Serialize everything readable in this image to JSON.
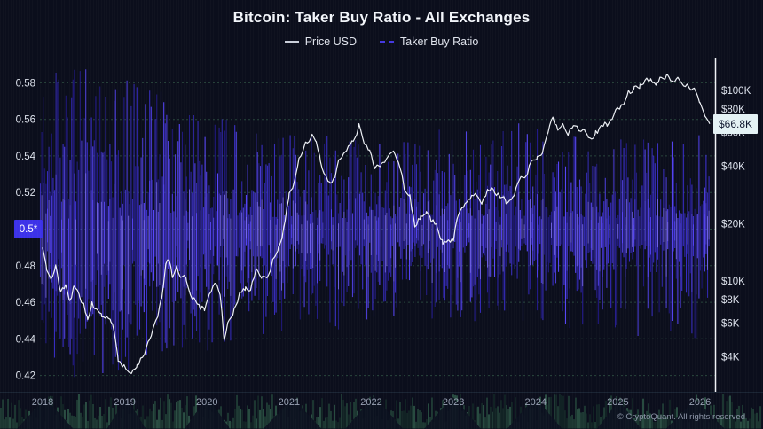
{
  "meta": {
    "title": "Bitcoin: Taker Buy Ratio - All Exchanges",
    "copyright": "© CryptoQuant. All rights reserved"
  },
  "colors": {
    "background": "#0b0e1c",
    "grid": "#2c4f41",
    "price_line": "#eef1f6",
    "axis_text": "#dde2ec",
    "x_axis_text": "#98a1b3",
    "right_axis_line": "#f0f2f6",
    "ratio_badge_bg": "#3c32e8",
    "price_badge_bg": "#e4f2f5",
    "stroke_dark": "#241b8e",
    "stroke_mid": "#3a2ecc",
    "stroke_bright": "#5a48ff",
    "stroke_highlight": "#7b6cf2",
    "nav_dark": "#16302a",
    "nav_mid": "#27503f",
    "nav_bright": "#3c7258",
    "nav_mountain": "#0c1120"
  },
  "legend": {
    "items": [
      {
        "label": "Price USD",
        "swatch": "solid",
        "color": "#c9ced9"
      },
      {
        "label": "Taker Buy Ratio",
        "swatch": "dashed",
        "color": "#4438e0"
      }
    ]
  },
  "chart_data": {
    "type": "line",
    "title": "Bitcoin: Taker Buy Ratio - All Exchanges",
    "grid": "dashed horizontal",
    "x_axis": {
      "ticks": [
        2018,
        2019,
        2020,
        2021,
        2022,
        2023,
        2024,
        2025,
        2026
      ],
      "range": [
        2017.97,
        2026.2
      ]
    },
    "left_axis": {
      "name": "Taker Buy Ratio",
      "ticks": [
        0.58,
        0.56,
        0.54,
        0.52,
        0.48,
        0.46,
        0.44,
        0.42
      ],
      "range": [
        0.405,
        0.593
      ],
      "current": {
        "label": "0.5*",
        "value": 0.5
      }
    },
    "right_axis": {
      "name": "Price USD",
      "scale": "log",
      "ticks": [
        {
          "label": "$100K",
          "value": 100000
        },
        {
          "label": "$80K",
          "value": 80000
        },
        {
          "label": "$60K",
          "value": 60000
        },
        {
          "label": "$40K",
          "value": 40000
        },
        {
          "label": "$20K",
          "value": 20000
        },
        {
          "label": "$10K",
          "value": 10000
        },
        {
          "label": "$8K",
          "value": 8000
        },
        {
          "label": "$6K",
          "value": 6000
        },
        {
          "label": "$4K",
          "value": 4000
        }
      ],
      "current": {
        "label": "$66.8K",
        "value": 66800
      }
    },
    "series": [
      {
        "name": "Price USD",
        "axis": "right",
        "type": "line",
        "color": "#eef1f6",
        "points": [
          [
            2018.0,
            15000
          ],
          [
            2018.05,
            11500
          ],
          [
            2018.1,
            10000
          ],
          [
            2018.16,
            11800
          ],
          [
            2018.22,
            8600
          ],
          [
            2018.28,
            9200
          ],
          [
            2018.33,
            7600
          ],
          [
            2018.38,
            9300
          ],
          [
            2018.45,
            8400
          ],
          [
            2018.5,
            7300
          ],
          [
            2018.55,
            6400
          ],
          [
            2018.6,
            7500
          ],
          [
            2018.65,
            7000
          ],
          [
            2018.72,
            6400
          ],
          [
            2018.78,
            6700
          ],
          [
            2018.83,
            6400
          ],
          [
            2018.87,
            5600
          ],
          [
            2018.92,
            4000
          ],
          [
            2018.97,
            3600
          ],
          [
            2019.03,
            3500
          ],
          [
            2019.08,
            3400
          ],
          [
            2019.15,
            3700
          ],
          [
            2019.22,
            4000
          ],
          [
            2019.3,
            5100
          ],
          [
            2019.38,
            5900
          ],
          [
            2019.45,
            8200
          ],
          [
            2019.5,
            11800
          ],
          [
            2019.54,
            12900
          ],
          [
            2019.58,
            10500
          ],
          [
            2019.63,
            11800
          ],
          [
            2019.68,
            10000
          ],
          [
            2019.75,
            10300
          ],
          [
            2019.8,
            8500
          ],
          [
            2019.86,
            8100
          ],
          [
            2019.92,
            7300
          ],
          [
            2019.97,
            7200
          ],
          [
            2020.03,
            8400
          ],
          [
            2020.1,
            9800
          ],
          [
            2020.16,
            8900
          ],
          [
            2020.21,
            4900
          ],
          [
            2020.27,
            6400
          ],
          [
            2020.33,
            7100
          ],
          [
            2020.4,
            8800
          ],
          [
            2020.47,
            9200
          ],
          [
            2020.53,
            9100
          ],
          [
            2020.6,
            11200
          ],
          [
            2020.67,
            10300
          ],
          [
            2020.73,
            10700
          ],
          [
            2020.8,
            13000
          ],
          [
            2020.87,
            15500
          ],
          [
            2020.93,
            18500
          ],
          [
            2021.0,
            28000
          ],
          [
            2021.06,
            33000
          ],
          [
            2021.12,
            45000
          ],
          [
            2021.2,
            52000
          ],
          [
            2021.28,
            60000
          ],
          [
            2021.33,
            52000
          ],
          [
            2021.38,
            42000
          ],
          [
            2021.43,
            36000
          ],
          [
            2021.5,
            33000
          ],
          [
            2021.56,
            34500
          ],
          [
            2021.62,
            44000
          ],
          [
            2021.7,
            48000
          ],
          [
            2021.78,
            55000
          ],
          [
            2021.85,
            64000
          ],
          [
            2021.92,
            51000
          ],
          [
            2021.98,
            47000
          ],
          [
            2022.05,
            39000
          ],
          [
            2022.12,
            40500
          ],
          [
            2022.2,
            42500
          ],
          [
            2022.27,
            46000
          ],
          [
            2022.33,
            40000
          ],
          [
            2022.4,
            31000
          ],
          [
            2022.47,
            28500
          ],
          [
            2022.53,
            19500
          ],
          [
            2022.6,
            21500
          ],
          [
            2022.67,
            23500
          ],
          [
            2022.73,
            20500
          ],
          [
            2022.8,
            19800
          ],
          [
            2022.87,
            16200
          ],
          [
            2022.94,
            16600
          ],
          [
            2023.0,
            16800
          ],
          [
            2023.06,
            22500
          ],
          [
            2023.12,
            24500
          ],
          [
            2023.2,
            27800
          ],
          [
            2023.28,
            29200
          ],
          [
            2023.35,
            26800
          ],
          [
            2023.42,
            30200
          ],
          [
            2023.5,
            29800
          ],
          [
            2023.57,
            28500
          ],
          [
            2023.64,
            25800
          ],
          [
            2023.72,
            27000
          ],
          [
            2023.8,
            34200
          ],
          [
            2023.88,
            36800
          ],
          [
            2023.95,
            42800
          ],
          [
            2024.02,
            43500
          ],
          [
            2024.08,
            48000
          ],
          [
            2024.15,
            61000
          ],
          [
            2024.21,
            71000
          ],
          [
            2024.27,
            63000
          ],
          [
            2024.33,
            67500
          ],
          [
            2024.4,
            60500
          ],
          [
            2024.46,
            67000
          ],
          [
            2024.53,
            60000
          ],
          [
            2024.6,
            64500
          ],
          [
            2024.66,
            57000
          ],
          [
            2024.73,
            60000
          ],
          [
            2024.8,
            63500
          ],
          [
            2024.87,
            68000
          ],
          [
            2024.93,
            72000
          ],
          [
            2025.0,
            80000
          ],
          [
            2025.07,
            86000
          ],
          [
            2025.13,
            96000
          ],
          [
            2025.2,
            100000
          ],
          [
            2025.27,
            106000
          ],
          [
            2025.33,
            110000
          ],
          [
            2025.4,
            115000
          ],
          [
            2025.47,
            112000
          ],
          [
            2025.53,
            118000
          ],
          [
            2025.6,
            120000
          ],
          [
            2025.67,
            114000
          ],
          [
            2025.73,
            117000
          ],
          [
            2025.8,
            110000
          ],
          [
            2025.87,
            103000
          ],
          [
            2025.93,
            98000
          ],
          [
            2026.0,
            86000
          ],
          [
            2026.06,
            74000
          ],
          [
            2026.12,
            66800
          ]
        ]
      },
      {
        "name": "Taker Buy Ratio",
        "axis": "left",
        "type": "dense-oscillation",
        "color": "#4a3af0",
        "mean": 0.5,
        "last_value": 0.5,
        "seed": 1337,
        "envelope": [
          [
            2018.0,
            0.088,
            0.078,
            1.0
          ],
          [
            2019.0,
            0.088,
            0.08,
            1.0
          ],
          [
            2019.8,
            0.065,
            0.065,
            1.3
          ],
          [
            2020.8,
            0.055,
            0.058,
            1.5
          ],
          [
            2022.0,
            0.048,
            0.052,
            1.8
          ],
          [
            2023.0,
            0.055,
            0.05,
            1.7
          ],
          [
            2024.0,
            0.055,
            0.052,
            1.8
          ],
          [
            2025.0,
            0.05,
            0.058,
            1.8
          ],
          [
            2026.15,
            0.05,
            0.06,
            1.8
          ]
        ]
      }
    ],
    "navigator": {
      "present": true,
      "style": "teal-density",
      "seed": 42
    }
  }
}
